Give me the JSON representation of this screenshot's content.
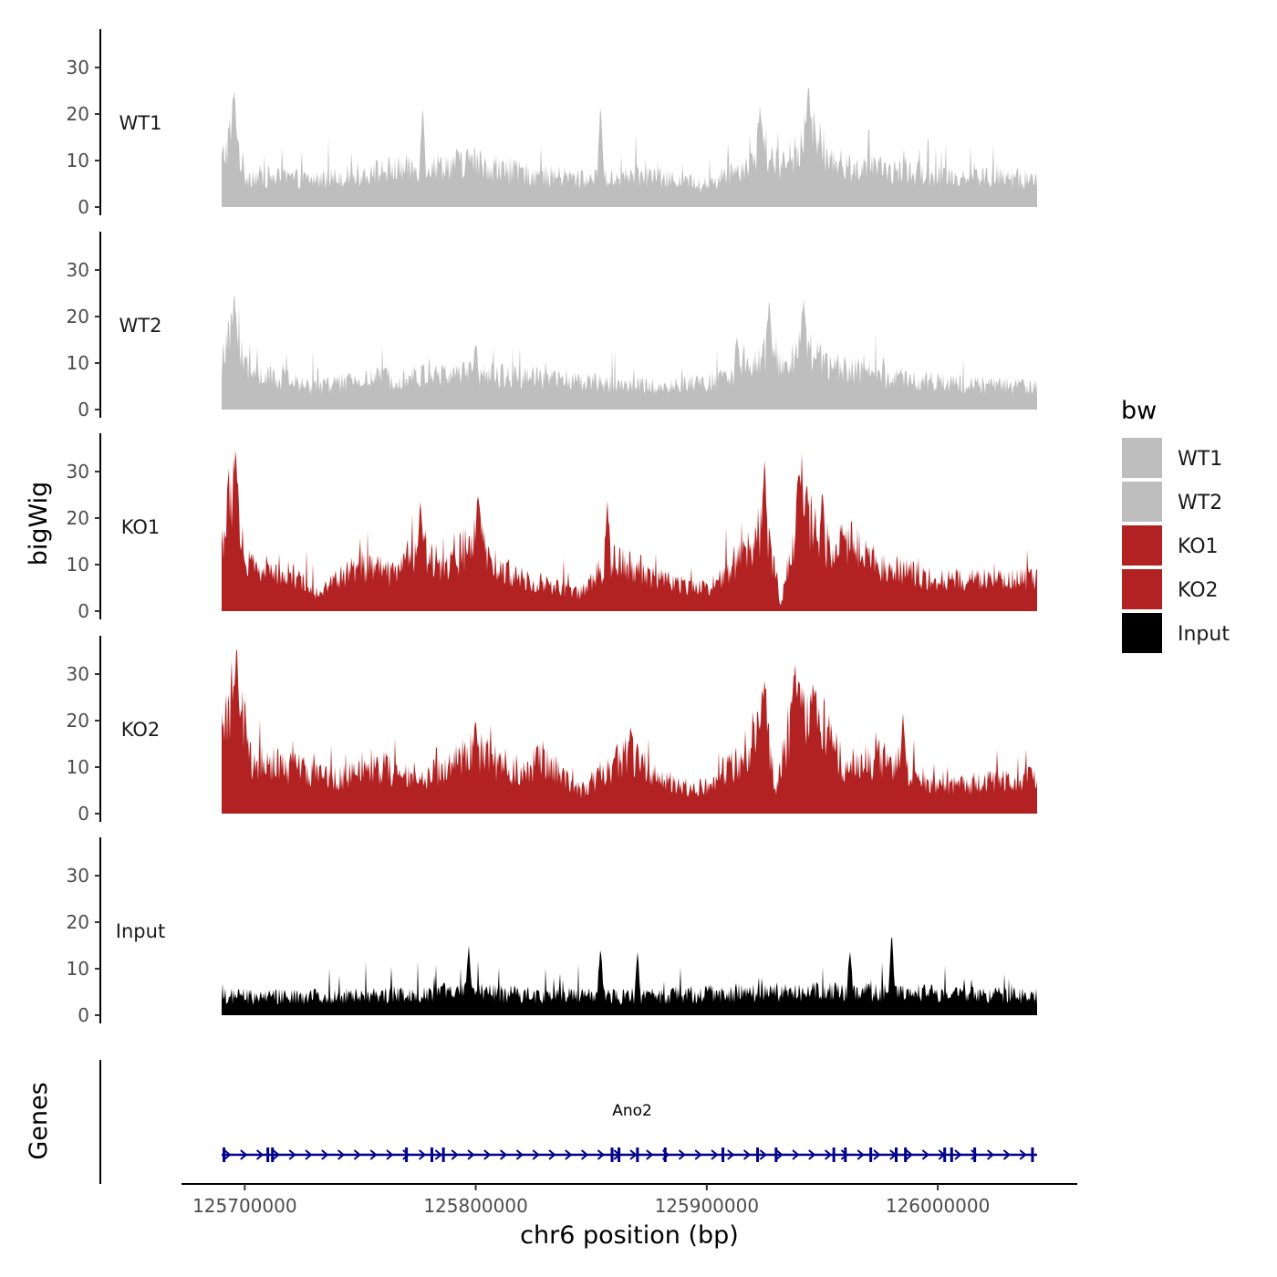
{
  "chart_data": {
    "type": "area",
    "chromosome": "chr6",
    "xlabel": "chr6 position (bp)",
    "ylabel": "bigWig",
    "gene_track_label": "Genes",
    "xlim": [
      125690000,
      126043000
    ],
    "x_ticks": [
      125700000,
      125800000,
      125900000,
      126000000
    ],
    "x_tick_labels": [
      "125700000",
      "125800000",
      "125900000",
      "126000000"
    ],
    "ylim": [
      0,
      38
    ],
    "y_ticks": [
      0,
      10,
      20,
      30
    ],
    "y_tick_labels": [
      "0",
      "10",
      "20",
      "30"
    ],
    "series": [
      {
        "name": "WT1",
        "color": "#bebebe",
        "baseline": 5,
        "profile": [
          [
            125690000,
            10
          ],
          [
            125695000,
            18
          ],
          [
            125700000,
            7
          ],
          [
            125730000,
            6
          ],
          [
            125760000,
            8
          ],
          [
            125780000,
            9
          ],
          [
            125800000,
            10
          ],
          [
            125810000,
            8
          ],
          [
            125850000,
            6
          ],
          [
            125870000,
            7
          ],
          [
            125900000,
            5
          ],
          [
            125915000,
            9
          ],
          [
            125925000,
            12
          ],
          [
            125935000,
            8
          ],
          [
            125944000,
            18
          ],
          [
            125955000,
            9
          ],
          [
            125980000,
            8
          ],
          [
            126000000,
            7
          ],
          [
            126043000,
            6
          ]
        ],
        "peaks": [
          [
            125695500,
            25
          ],
          [
            125777000,
            22
          ],
          [
            125854000,
            23
          ],
          [
            125923000,
            22
          ],
          [
            125944000,
            26
          ]
        ]
      },
      {
        "name": "WT2",
        "color": "#bebebe",
        "baseline": 4,
        "profile": [
          [
            125690000,
            10
          ],
          [
            125695000,
            17
          ],
          [
            125702000,
            8
          ],
          [
            125730000,
            5
          ],
          [
            125760000,
            7
          ],
          [
            125800000,
            8
          ],
          [
            125850000,
            6
          ],
          [
            125880000,
            5
          ],
          [
            125900000,
            6
          ],
          [
            125920000,
            9
          ],
          [
            125926000,
            13
          ],
          [
            125935000,
            7
          ],
          [
            125942000,
            16
          ],
          [
            125950000,
            10
          ],
          [
            125980000,
            7
          ],
          [
            126000000,
            6
          ],
          [
            126043000,
            5
          ]
        ],
        "peaks": [
          [
            125695500,
            25
          ],
          [
            125800000,
            15
          ],
          [
            125913000,
            16
          ],
          [
            125927000,
            24
          ],
          [
            125942000,
            24
          ]
        ]
      },
      {
        "name": "KO1",
        "color": "#b22222",
        "baseline": 6,
        "profile": [
          [
            125690000,
            15
          ],
          [
            125695000,
            28
          ],
          [
            125701000,
            10
          ],
          [
            125720000,
            8
          ],
          [
            125730000,
            4
          ],
          [
            125750000,
            10
          ],
          [
            125765000,
            8
          ],
          [
            125776000,
            15
          ],
          [
            125785000,
            9
          ],
          [
            125800000,
            16
          ],
          [
            125810000,
            9
          ],
          [
            125830000,
            6
          ],
          [
            125845000,
            4
          ],
          [
            125860000,
            12
          ],
          [
            125880000,
            7
          ],
          [
            125900000,
            5
          ],
          [
            125915000,
            12
          ],
          [
            125925000,
            20
          ],
          [
            125930000,
            8
          ],
          [
            125932000,
            1
          ],
          [
            125940000,
            24
          ],
          [
            125950000,
            14
          ],
          [
            125962000,
            16
          ],
          [
            125975000,
            10
          ],
          [
            126000000,
            7
          ],
          [
            126043000,
            7
          ]
        ],
        "peaks": [
          [
            125696000,
            35
          ],
          [
            125776000,
            24
          ],
          [
            125801000,
            25
          ],
          [
            125857000,
            24
          ],
          [
            125925000,
            33
          ],
          [
            125940000,
            30
          ],
          [
            125950000,
            27
          ]
        ]
      },
      {
        "name": "KO2",
        "color": "#b22222",
        "baseline": 6,
        "profile": [
          [
            125690000,
            14
          ],
          [
            125696000,
            30
          ],
          [
            125702000,
            12
          ],
          [
            125720000,
            10
          ],
          [
            125740000,
            8
          ],
          [
            125760000,
            10
          ],
          [
            125775000,
            7
          ],
          [
            125800000,
            14
          ],
          [
            125815000,
            9
          ],
          [
            125830000,
            12
          ],
          [
            125845000,
            5
          ],
          [
            125865000,
            13
          ],
          [
            125880000,
            8
          ],
          [
            125895000,
            5
          ],
          [
            125915000,
            12
          ],
          [
            125925000,
            22
          ],
          [
            125930000,
            6
          ],
          [
            125938000,
            24
          ],
          [
            125948000,
            20
          ],
          [
            125960000,
            10
          ],
          [
            125975000,
            12
          ],
          [
            125990000,
            9
          ],
          [
            126000000,
            6
          ],
          [
            126043000,
            8
          ]
        ],
        "peaks": [
          [
            125696500,
            37
          ],
          [
            125800000,
            20
          ],
          [
            125867000,
            19
          ],
          [
            125925000,
            29
          ],
          [
            125938000,
            30
          ],
          [
            125946000,
            28
          ],
          [
            125985000,
            22
          ]
        ]
      },
      {
        "name": "Input",
        "color": "#000000",
        "baseline": 4,
        "profile": [
          [
            125690000,
            4
          ],
          [
            125730000,
            4
          ],
          [
            125790000,
            5
          ],
          [
            125860000,
            4
          ],
          [
            125930000,
            5
          ],
          [
            125980000,
            5
          ],
          [
            126043000,
            4
          ]
        ],
        "peaks": [
          [
            125797000,
            15
          ],
          [
            125854000,
            15
          ],
          [
            125870000,
            14
          ],
          [
            125980000,
            18
          ],
          [
            125962000,
            14
          ]
        ]
      }
    ],
    "legend": {
      "title": "bw",
      "entries": [
        {
          "label": "WT1",
          "color": "#bebebe"
        },
        {
          "label": "WT2",
          "color": "#bebebe"
        },
        {
          "label": "KO1",
          "color": "#b22222"
        },
        {
          "label": "KO2",
          "color": "#b22222"
        },
        {
          "label": "Input",
          "color": "#000000"
        }
      ]
    },
    "genes": [
      {
        "name": "Ano2",
        "strand": "+",
        "start": 125690000,
        "end": 126043000,
        "color": "#00008b",
        "exons": [
          125691000,
          125710000,
          125712000,
          125770000,
          125781000,
          125786000,
          125859000,
          125862000,
          125870000,
          125882000,
          125907000,
          125922000,
          125930000,
          125955000,
          125960000,
          125971000,
          125982000,
          125986000,
          126003000,
          126006000,
          126016000,
          126041000
        ]
      }
    ]
  }
}
